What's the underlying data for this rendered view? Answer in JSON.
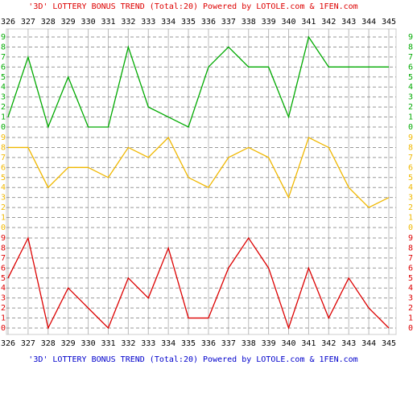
{
  "chart_data": {
    "type": "line",
    "title": "'3D' LOTTERY BONUS TREND (Total:20)  Powered by LOTOLE.com & 1FEN.com",
    "footer": "'3D' LOTTERY BONUS TREND (Total:20)  Powered by LOTOLE.com & 1FEN.com",
    "categories": [
      "326",
      "327",
      "328",
      "329",
      "330",
      "331",
      "332",
      "333",
      "334",
      "335",
      "336",
      "337",
      "338",
      "339",
      "340",
      "341",
      "342",
      "343",
      "344",
      "345"
    ],
    "series": [
      {
        "color": "#00aa00",
        "values": [
          1,
          7,
          0,
          5,
          0,
          0,
          8,
          2,
          1,
          0,
          6,
          8,
          6,
          6,
          1,
          9,
          6,
          6,
          6,
          6
        ]
      },
      {
        "color": "#f0b800",
        "values": [
          8,
          8,
          4,
          6,
          6,
          5,
          8,
          7,
          9,
          5,
          4,
          7,
          8,
          7,
          3,
          9,
          8,
          4,
          2,
          3
        ]
      },
      {
        "color": "#dd0000",
        "values": [
          5,
          9,
          0,
          4,
          2,
          0,
          5,
          3,
          8,
          1,
          1,
          6,
          9,
          6,
          0,
          6,
          1,
          5,
          2,
          0
        ]
      }
    ],
    "ylim": [
      0,
      9
    ],
    "yticks": [
      0,
      1,
      2,
      3,
      4,
      5,
      6,
      7,
      8,
      9
    ],
    "grid": true
  }
}
